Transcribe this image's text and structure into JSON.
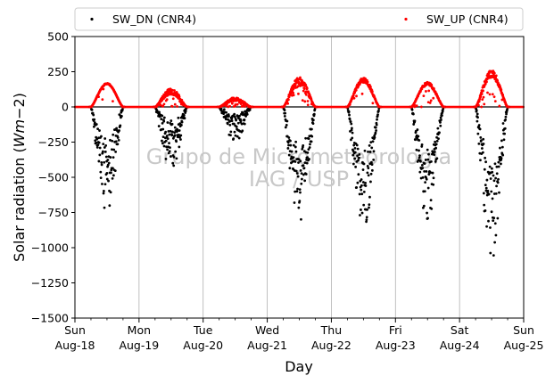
{
  "chart_data": {
    "type": "scatter",
    "xlabel": "Day",
    "ylabel": "Solar radiation ($W m{-2}$)",
    "ylabel_parts": {
      "main": "Solar radiation (",
      "math": "Wm",
      "rest": "−2)"
    },
    "ylim": [
      -1500,
      500
    ],
    "yticks": [
      500,
      250,
      0,
      -250,
      -500,
      -750,
      -1000,
      -1250,
      -1500
    ],
    "ytick_labels": [
      "500",
      "250",
      "0",
      "−250",
      "−500",
      "−750",
      "−1000",
      "−1250",
      "−1500"
    ],
    "x_range_days": [
      0,
      7
    ],
    "xticks": [
      {
        "day": "Sun",
        "date": "Aug-18"
      },
      {
        "day": "Mon",
        "date": "Aug-19"
      },
      {
        "day": "Tue",
        "date": "Aug-20"
      },
      {
        "day": "Wed",
        "date": "Aug-21"
      },
      {
        "day": "Thu",
        "date": "Aug-22"
      },
      {
        "day": "Fri",
        "date": "Aug-23"
      },
      {
        "day": "Sat",
        "date": "Aug-24"
      },
      {
        "day": "Sun",
        "date": "Aug-25"
      }
    ],
    "grid": "vertical",
    "legend_position": "top, above plot",
    "watermark": [
      "Grupo de Micrometeorologia",
      "IAG / USP"
    ],
    "series": [
      {
        "name": "SW_DN (CNR4)",
        "color": "#000000",
        "daily_peaks": [
          -775,
          -450,
          -250,
          -830,
          -870,
          -830,
          -1090
        ],
        "daily_shape": [
          0.42,
          0.35,
          0.3,
          0.55,
          0.6,
          0.55,
          0.5
        ]
      },
      {
        "name": "SW_UP (CNR4)",
        "color": "#ff0000",
        "daily_peaks": [
          165,
          110,
          55,
          180,
          190,
          165,
          235
        ],
        "daily_shape": [
          0.95,
          0.55,
          0.5,
          0.6,
          0.8,
          0.85,
          0.75
        ]
      }
    ],
    "zero_line": true,
    "day_window": [
      0.25,
      0.75
    ]
  },
  "icons": {
    "legend_marker_dn": "black-dot-marker",
    "legend_marker_up": "red-dot-marker"
  }
}
